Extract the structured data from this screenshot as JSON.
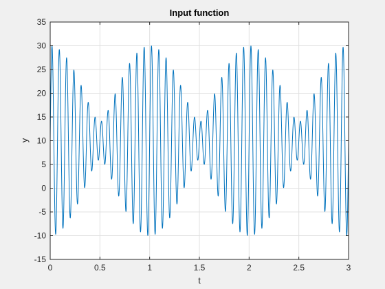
{
  "chart_data": {
    "type": "line",
    "title": "Input function",
    "xlabel": "t",
    "ylabel": "y",
    "xlim": [
      0,
      3
    ],
    "ylim": [
      -15,
      35
    ],
    "xticks": [
      0,
      0.5,
      1,
      1.5,
      2,
      2.5,
      3
    ],
    "xtick_labels": [
      "0",
      "0.5",
      "1",
      "1.5",
      "2",
      "2.5",
      "3"
    ],
    "yticks": [
      -15,
      -10,
      -5,
      0,
      5,
      10,
      15,
      20,
      25,
      30,
      35
    ],
    "ytick_labels": [
      "-15",
      "-10",
      "-5",
      "0",
      "5",
      "10",
      "15",
      "20",
      "25",
      "30",
      "35"
    ],
    "grid": true,
    "legend": "none",
    "series": [
      {
        "color": "#0072BD",
        "function": "y = 10 + 12*sin(2*pi*14*t) + 8*sin(2*pi*13*t)",
        "t_range": [
          0,
          3
        ],
        "samples": 3001
      }
    ]
  },
  "colors": {
    "figure_background": "#f0f0f0",
    "axes_background": "#ffffff",
    "grid": "#e0e0e0",
    "axis": "#262626",
    "line": "#0072BD"
  }
}
